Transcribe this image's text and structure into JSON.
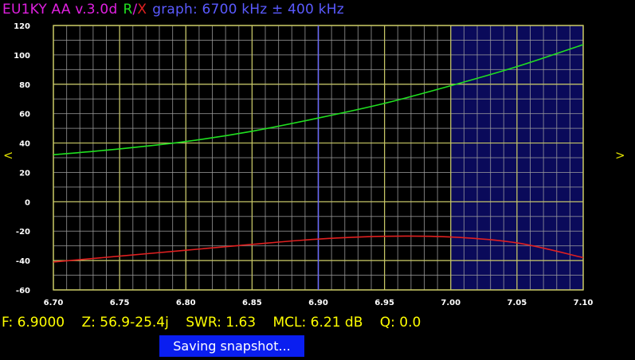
{
  "title": {
    "device": "EU1KY AA v.3.0d",
    "r_label": "R",
    "slash": "/",
    "x_label": "X",
    "graph_label": "graph: 6700 kHz ± 400 kHz"
  },
  "nav": {
    "left": "<",
    "right": ">"
  },
  "status": {
    "frequency": "F: 6.9000",
    "impedance": "Z: 56.9-25.4j",
    "swr": "SWR: 1.63",
    "mcl": "MCL: 6.21 dB",
    "q": "Q: 0.0"
  },
  "snapshot_label": "Saving snapshot...",
  "colors": {
    "r_series": "#20e020",
    "x_series": "#e02020",
    "grid_major": "#c8c864",
    "grid_minor": "#a0a0a0",
    "cursor": "#6a6aff",
    "band_highlight": "#0a0a5a",
    "axis_text": "#ffffff",
    "status_text": "#ffff00"
  },
  "chart_data": {
    "type": "line",
    "xlabel": "",
    "ylabel": "",
    "xlim": [
      6.7,
      7.1
    ],
    "ylim": [
      -60,
      120
    ],
    "x_ticks": [
      "6.70",
      "6.75",
      "6.80",
      "6.85",
      "6.90",
      "6.95",
      "7.00",
      "7.05",
      "7.10"
    ],
    "y_ticks": [
      "120",
      "100",
      "80",
      "60",
      "40",
      "20",
      "0",
      "-20",
      "-40",
      "-60"
    ],
    "highlight_band": [
      7.0,
      7.1
    ],
    "cursor_x": 6.9,
    "series": [
      {
        "name": "R",
        "x": [
          6.7,
          6.75,
          6.8,
          6.85,
          6.9,
          6.95,
          7.0,
          7.05,
          7.1
        ],
        "y": [
          32,
          36,
          41,
          48,
          57,
          67,
          79,
          92,
          107
        ]
      },
      {
        "name": "X",
        "x": [
          6.7,
          6.75,
          6.8,
          6.85,
          6.9,
          6.95,
          7.0,
          7.05,
          7.1
        ],
        "y": [
          -41,
          -37,
          -33,
          -29,
          -25.4,
          -23.5,
          -24,
          -28,
          -38
        ]
      }
    ]
  }
}
